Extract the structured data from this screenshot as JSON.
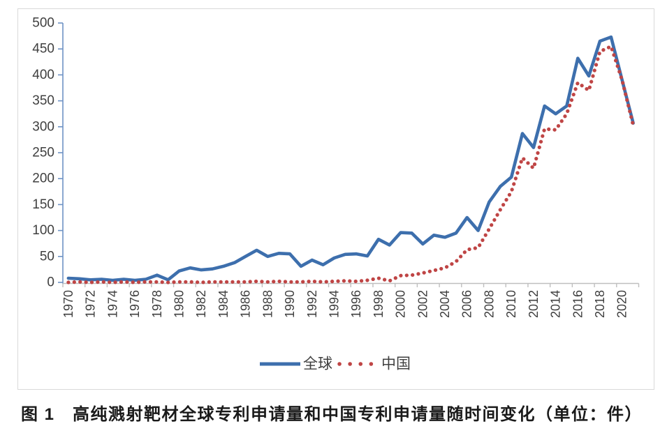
{
  "page": {
    "background": "#ffffff"
  },
  "caption": "图 1　高纯溅射靶材全球专利申请量和中国专利申请量随时间变化（单位：件）",
  "legend": {
    "items": [
      {
        "label": "全球",
        "style": "solid-line",
        "color": "#3d6fad"
      },
      {
        "label": "中国",
        "style": "dotted-line",
        "color": "#bf4545"
      }
    ]
  },
  "chart_data": {
    "type": "line",
    "title": "",
    "xlabel": "",
    "ylabel": "",
    "unit": "件",
    "x": [
      1970,
      1971,
      1972,
      1973,
      1974,
      1975,
      1976,
      1977,
      1978,
      1979,
      1980,
      1981,
      1982,
      1983,
      1984,
      1985,
      1986,
      1987,
      1988,
      1989,
      1990,
      1991,
      1992,
      1993,
      1994,
      1995,
      1996,
      1997,
      1998,
      1999,
      2000,
      2001,
      2002,
      2003,
      2004,
      2005,
      2006,
      2007,
      2008,
      2009,
      2010,
      2011,
      2012,
      2013,
      2014,
      2015,
      2016,
      2017,
      2018,
      2019,
      2020,
      2021
    ],
    "x_tick_labels": [
      "1970",
      "1972",
      "1974",
      "1976",
      "1978",
      "1980",
      "1982",
      "1984",
      "1986",
      "1988",
      "1990",
      "1992",
      "1994",
      "1996",
      "1998",
      "2000",
      "2002",
      "2004",
      "2006",
      "2008",
      "2010",
      "2012",
      "2014",
      "2016",
      "2018",
      "2020"
    ],
    "y_tick_labels": [
      0,
      50,
      100,
      150,
      200,
      250,
      300,
      350,
      400,
      450,
      500
    ],
    "ylim": [
      0,
      500
    ],
    "ytick_step": 50,
    "grid": false,
    "legend_position": "bottom",
    "series": [
      {
        "name": "全球",
        "style": "solid",
        "color": "#3d6fad",
        "values": [
          8,
          7,
          5,
          6,
          4,
          6,
          4,
          6,
          14,
          5,
          22,
          28,
          24,
          26,
          31,
          38,
          50,
          62,
          50,
          56,
          55,
          31,
          43,
          34,
          47,
          54,
          55,
          51,
          83,
          72,
          96,
          95,
          74,
          91,
          87,
          95,
          125,
          100,
          155,
          185,
          203,
          287,
          260,
          340,
          325,
          340,
          432,
          398,
          465,
          473,
          390,
          307
        ]
      },
      {
        "name": "中国",
        "style": "dotted",
        "color": "#bf4545",
        "values": [
          0,
          1,
          0,
          1,
          0,
          1,
          0,
          1,
          1,
          0,
          1,
          1,
          0,
          1,
          1,
          1,
          1,
          2,
          1,
          2,
          1,
          1,
          2,
          1,
          2,
          3,
          2,
          4,
          8,
          3,
          13,
          14,
          18,
          23,
          28,
          40,
          63,
          67,
          103,
          140,
          175,
          240,
          220,
          296,
          294,
          325,
          385,
          370,
          445,
          455,
          390,
          303
        ]
      }
    ],
    "axis_color": "#6e92c5",
    "x_axis_color": "#bfbfbf",
    "tick_label_color": "#3f3f3f",
    "border_color": "#d9d9d9"
  }
}
